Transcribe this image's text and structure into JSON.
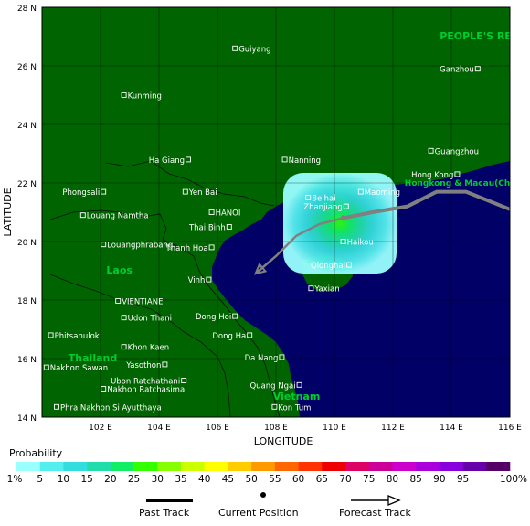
{
  "map": {
    "axis": {
      "y_title": "LATITUDE",
      "x_title": "LONGITUDE",
      "y_ticks": [
        {
          "value": 28,
          "label": "28 N"
        },
        {
          "value": 26,
          "label": "26 N"
        },
        {
          "value": 24,
          "label": "24 N"
        },
        {
          "value": 22,
          "label": "22 N"
        },
        {
          "value": 20,
          "label": "20 N"
        },
        {
          "value": 18,
          "label": "18 N"
        },
        {
          "value": 16,
          "label": "16 N"
        },
        {
          "value": 14,
          "label": "14 N"
        }
      ],
      "x_ticks": [
        {
          "value": 102,
          "label": "102 E"
        },
        {
          "value": 104,
          "label": "104 E"
        },
        {
          "value": 106,
          "label": "106 E"
        },
        {
          "value": 108,
          "label": "108 E"
        },
        {
          "value": 110,
          "label": "110 E"
        },
        {
          "value": 112,
          "label": "112 E"
        },
        {
          "value": 114,
          "label": "114 E"
        },
        {
          "value": 116,
          "label": "116 E"
        }
      ]
    },
    "countries": [
      {
        "name": "PEOPLE'S REPUBLIC",
        "lon": 113.6,
        "lat": 26.9
      },
      {
        "name": "Hongkong & Macau(Chin",
        "lon": 112.4,
        "lat": 21.9
      },
      {
        "name": "Laos",
        "lon": 102.2,
        "lat": 18.9
      },
      {
        "name": "Thailand",
        "lon": 100.9,
        "lat": 15.9
      },
      {
        "name": "Vietnam",
        "lon": 107.9,
        "lat": 14.6
      }
    ],
    "cities": [
      {
        "name": "Guiyang",
        "lon": 106.6,
        "lat": 26.6,
        "side": "right"
      },
      {
        "name": "Kunming",
        "lon": 102.8,
        "lat": 25.0,
        "side": "right"
      },
      {
        "name": "Ganzhou",
        "lon": 114.9,
        "lat": 25.9,
        "side": "left"
      },
      {
        "name": "Nanning",
        "lon": 108.3,
        "lat": 22.8,
        "side": "right"
      },
      {
        "name": "Guangzhou",
        "lon": 113.3,
        "lat": 23.1,
        "side": "right"
      },
      {
        "name": "Ha Giang",
        "lon": 105.0,
        "lat": 22.8,
        "side": "left"
      },
      {
        "name": "Hong Kong",
        "lon": 114.2,
        "lat": 22.3,
        "side": "left"
      },
      {
        "name": "Phongsali",
        "lon": 102.1,
        "lat": 21.7,
        "side": "left"
      },
      {
        "name": "Yen Bai",
        "lon": 104.9,
        "lat": 21.7,
        "side": "right"
      },
      {
        "name": "Beihai",
        "lon": 109.1,
        "lat": 21.5,
        "side": "right"
      },
      {
        "name": "Maoming",
        "lon": 110.9,
        "lat": 21.7,
        "side": "right"
      },
      {
        "name": "Zhanjiang",
        "lon": 110.4,
        "lat": 21.2,
        "side": "left"
      },
      {
        "name": "Louang Namtha",
        "lon": 101.4,
        "lat": 20.9,
        "side": "right"
      },
      {
        "name": "HANOI",
        "lon": 105.8,
        "lat": 21.0,
        "side": "right"
      },
      {
        "name": "Thai Binh",
        "lon": 106.4,
        "lat": 20.5,
        "side": "left"
      },
      {
        "name": "Louangphrabang",
        "lon": 102.1,
        "lat": 19.9,
        "side": "right"
      },
      {
        "name": "Haikou",
        "lon": 110.3,
        "lat": 20.0,
        "side": "right"
      },
      {
        "name": "Thanh Hoa",
        "lon": 105.8,
        "lat": 19.8,
        "side": "left"
      },
      {
        "name": "Qionghai",
        "lon": 110.5,
        "lat": 19.2,
        "side": "left"
      },
      {
        "name": "Vinh",
        "lon": 105.7,
        "lat": 18.7,
        "side": "left"
      },
      {
        "name": "Yaxian",
        "lon": 109.2,
        "lat": 18.4,
        "side": "right"
      },
      {
        "name": "VIENTIANE",
        "lon": 102.6,
        "lat": 17.97,
        "side": "right"
      },
      {
        "name": "Udon Thani",
        "lon": 102.8,
        "lat": 17.4,
        "side": "right"
      },
      {
        "name": "Dong Hoi",
        "lon": 106.6,
        "lat": 17.45,
        "side": "left"
      },
      {
        "name": "Phitsanulok",
        "lon": 100.3,
        "lat": 16.8,
        "side": "right"
      },
      {
        "name": "Dong Ha",
        "lon": 107.1,
        "lat": 16.8,
        "side": "left"
      },
      {
        "name": "Khon Kaen",
        "lon": 102.8,
        "lat": 16.4,
        "side": "right"
      },
      {
        "name": "Da Nang",
        "lon": 108.2,
        "lat": 16.05,
        "side": "left"
      },
      {
        "name": "Yasothon",
        "lon": 104.2,
        "lat": 15.8,
        "side": "left"
      },
      {
        "name": "Nakhon Sawan",
        "lon": 100.15,
        "lat": 15.7,
        "side": "right"
      },
      {
        "name": "Ubon Ratchathani",
        "lon": 104.85,
        "lat": 15.25,
        "side": "left"
      },
      {
        "name": "Quang Ngai",
        "lon": 108.8,
        "lat": 15.1,
        "side": "left"
      },
      {
        "name": "Nakhon Ratchasima",
        "lon": 102.1,
        "lat": 14.97,
        "side": "right"
      },
      {
        "name": "Phra Nakhon Si Ayutthaya",
        "lon": 100.5,
        "lat": 14.35,
        "side": "right"
      },
      {
        "name": "Kon Tum",
        "lon": 107.95,
        "lat": 14.35,
        "side": "right"
      }
    ],
    "storm": {
      "current_position": {
        "lon": 110.3,
        "lat": 20.8
      },
      "past_track": [
        [
          116.0,
          21.1
        ],
        [
          114.5,
          21.7
        ],
        [
          113.5,
          21.7
        ],
        [
          112.5,
          21.2
        ],
        [
          111.3,
          21.0
        ],
        [
          110.3,
          20.8
        ]
      ],
      "forecast_track": [
        [
          110.3,
          20.8
        ],
        [
          109.5,
          20.6
        ],
        [
          108.7,
          20.2
        ],
        [
          108.0,
          19.5
        ],
        [
          107.3,
          18.9
        ]
      ]
    },
    "colors": {
      "land": "#006400",
      "sea": "#000066",
      "city_label": "#ffffff",
      "country_label": "#00cc33",
      "track": "#808080"
    }
  },
  "legend": {
    "title": "Probability",
    "bins": [
      {
        "label": "1%",
        "color": "#99ffff"
      },
      {
        "label": "5",
        "color": "#55eeee"
      },
      {
        "label": "10",
        "color": "#33dddd"
      },
      {
        "label": "15",
        "color": "#22ddaa"
      },
      {
        "label": "20",
        "color": "#11ee66"
      },
      {
        "label": "25",
        "color": "#33ff00"
      },
      {
        "label": "30",
        "color": "#88ff00"
      },
      {
        "label": "35",
        "color": "#ccff00"
      },
      {
        "label": "40",
        "color": "#ffff00"
      },
      {
        "label": "45",
        "color": "#ffcc00"
      },
      {
        "label": "50",
        "color": "#ff9900"
      },
      {
        "label": "55",
        "color": "#ff6600"
      },
      {
        "label": "60",
        "color": "#ff3300"
      },
      {
        "label": "65",
        "color": "#ee0000"
      },
      {
        "label": "70",
        "color": "#dd0066"
      },
      {
        "label": "75",
        "color": "#cc0099"
      },
      {
        "label": "80",
        "color": "#cc00cc"
      },
      {
        "label": "85",
        "color": "#aa00dd"
      },
      {
        "label": "90",
        "color": "#8800dd"
      },
      {
        "label": "95",
        "color": "#6600aa"
      },
      {
        "label": "100%",
        "color": "#550066"
      }
    ],
    "past_track_label": "Past Track",
    "current_position_label": "Current Position",
    "forecast_track_label": "Forecast Track"
  }
}
